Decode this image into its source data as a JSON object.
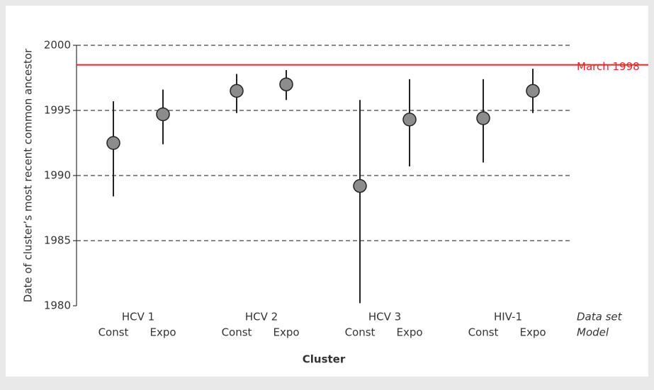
{
  "chart_data": {
    "type": "scatter",
    "ylabel": "Date of cluster’s most recent common ancestor",
    "xlabel": "Cluster",
    "groups": [
      "HCV 1",
      "HCV 2",
      "HCV 3",
      "HIV-1"
    ],
    "categories": [
      "Const",
      "Expo",
      "Const",
      "Expo",
      "Const",
      "Expo",
      "Const",
      "Expo"
    ],
    "row_labels": [
      "Data set",
      "Model"
    ],
    "values": [
      1992.5,
      1994.7,
      1996.5,
      1997.0,
      1989.2,
      1994.3,
      1994.4,
      1996.5
    ],
    "lower": [
      1988.4,
      1992.4,
      1994.8,
      1995.8,
      1980.2,
      1990.7,
      1991.0,
      1994.8
    ],
    "upper": [
      1995.7,
      1996.6,
      1997.8,
      1998.1,
      1995.8,
      1997.4,
      1997.4,
      1998.2
    ],
    "color": "#8c8c8c",
    "reference_line": {
      "value": 1998.5,
      "label": "March 1998",
      "color": "#e3262b"
    },
    "ylim": [
      1980,
      2000
    ],
    "yticks": [
      1980,
      1985,
      1990,
      1995,
      2000
    ],
    "grid": true
  }
}
